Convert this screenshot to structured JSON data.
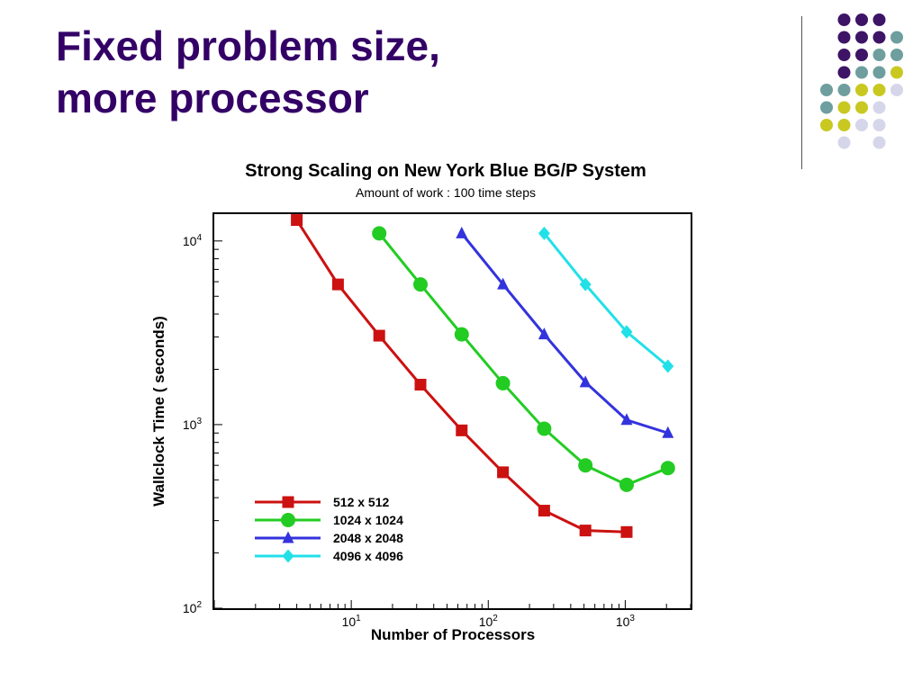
{
  "slide": {
    "title_lines": [
      "Fixed problem size,",
      "more processor"
    ]
  },
  "decoration": {
    "name": "dot-grid-decoration",
    "colors": {
      "purple": "#3d1466",
      "teal": "#6e9e9e",
      "olive": "#c8c820",
      "lavender": "#d6d6ea"
    },
    "rows": [
      [
        "",
        "purple",
        "purple",
        "purple",
        ""
      ],
      [
        "",
        "purple",
        "purple",
        "purple",
        "teal"
      ],
      [
        "",
        "purple",
        "purple",
        "teal",
        "teal"
      ],
      [
        "",
        "purple",
        "teal",
        "teal",
        "olive"
      ],
      [
        "teal",
        "teal",
        "olive",
        "olive",
        "lavender"
      ],
      [
        "teal",
        "olive",
        "olive",
        "lavender",
        ""
      ],
      [
        "olive",
        "olive",
        "lavender",
        "lavender",
        ""
      ],
      [
        "",
        "lavender",
        "",
        "lavender",
        ""
      ]
    ]
  },
  "chart_data": {
    "type": "line",
    "title": "Strong Scaling on New York Blue BG/P System",
    "subtitle": "Amount of work : 100 time steps",
    "xlabel": "Number of Processors",
    "ylabel": "Wallclock Time ( seconds)",
    "x_scale": "log",
    "y_scale": "log",
    "xlim": [
      1,
      3000
    ],
    "ylim": [
      100,
      14000
    ],
    "x_ticks": [
      {
        "value": 10,
        "base": "10",
        "exp": "1"
      },
      {
        "value": 100,
        "base": "10",
        "exp": "2"
      },
      {
        "value": 1000,
        "base": "10",
        "exp": "3"
      }
    ],
    "y_ticks": [
      {
        "value": 100,
        "base": "10",
        "exp": "2"
      },
      {
        "value": 1000,
        "base": "10",
        "exp": "3"
      },
      {
        "value": 10000,
        "base": "10",
        "exp": "4"
      }
    ],
    "grid": false,
    "legend_position": "bottom-left",
    "series": [
      {
        "name": "512 x 512",
        "color": "#cc1111",
        "marker": "square",
        "points": [
          [
            4,
            13000
          ],
          [
            8,
            5800
          ],
          [
            16,
            3050
          ],
          [
            32,
            1650
          ],
          [
            64,
            930
          ],
          [
            128,
            550
          ],
          [
            256,
            340
          ],
          [
            512,
            265
          ],
          [
            1024,
            260
          ]
        ]
      },
      {
        "name": "1024 x 1024",
        "color": "#22cc22",
        "marker": "circle",
        "points": [
          [
            16,
            11000
          ],
          [
            32,
            5800
          ],
          [
            64,
            3100
          ],
          [
            128,
            1680
          ],
          [
            256,
            950
          ],
          [
            512,
            600
          ],
          [
            1024,
            470
          ],
          [
            2048,
            580
          ]
        ]
      },
      {
        "name": "2048 x 2048",
        "color": "#3333dd",
        "marker": "triangle",
        "points": [
          [
            64,
            11000
          ],
          [
            128,
            5800
          ],
          [
            256,
            3100
          ],
          [
            512,
            1700
          ],
          [
            1024,
            1060
          ],
          [
            2048,
            900
          ]
        ]
      },
      {
        "name": "4096 x 4096",
        "color": "#22e0e8",
        "marker": "diamond",
        "points": [
          [
            256,
            11000
          ],
          [
            512,
            5800
          ],
          [
            1024,
            3200
          ],
          [
            2048,
            2080
          ]
        ]
      }
    ]
  }
}
